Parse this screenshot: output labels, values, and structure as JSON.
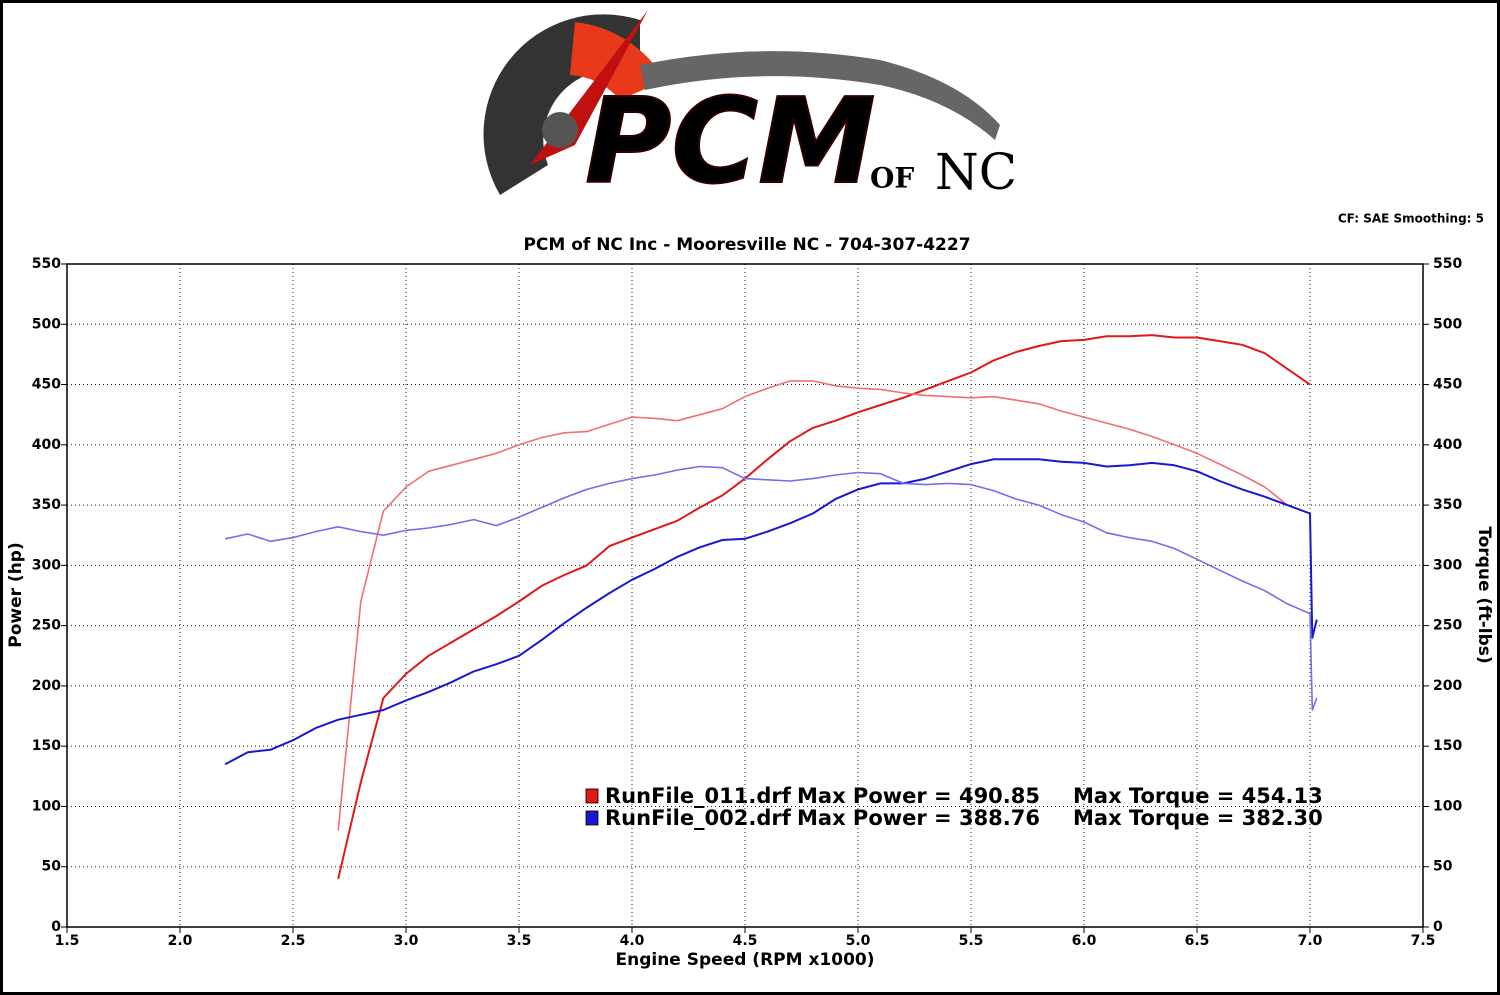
{
  "chart_data": {
    "type": "line",
    "logo": {
      "main": "PCM",
      "of": "OF",
      "nc": "NC"
    },
    "note": "CF: SAE  Smoothing: 5",
    "title": "PCM of NC Inc - Mooresville NC - 704-307-4227",
    "x_label": "Engine Speed (RPM x1000)",
    "y_label": "Power (hp)",
    "y2_label": "Torque (ft-lbs)",
    "xlim": [
      1.5,
      7.5
    ],
    "xticks": [
      1.5,
      {
        "value": 2,
        "label": "2.0"
      },
      2.5,
      {
        "value": 3,
        "label": "3.0"
      },
      3.5,
      {
        "value": 4,
        "label": "4.0"
      },
      4.5,
      {
        "value": 5,
        "label": "5.0"
      },
      5.5,
      {
        "value": 6,
        "label": "6.0"
      },
      6.5,
      {
        "value": 7,
        "label": "7.0"
      },
      7.5
    ],
    "ylim": [
      0,
      550
    ],
    "yticks": [
      0,
      50,
      100,
      150,
      200,
      250,
      300,
      350,
      400,
      450,
      500,
      550
    ],
    "y2lim": [
      0,
      550
    ],
    "y2ticks": [
      0,
      50,
      100,
      150,
      200,
      250,
      300,
      350,
      400,
      450,
      500,
      550
    ],
    "grid": true,
    "x": [
      2.2,
      2.3,
      2.4,
      2.5,
      2.6,
      2.7,
      2.8,
      2.9,
      3.0,
      3.1,
      3.2,
      3.3,
      3.4,
      3.5,
      3.6,
      3.7,
      3.8,
      3.9,
      4.0,
      4.1,
      4.2,
      4.3,
      4.4,
      4.5,
      4.6,
      4.7,
      4.8,
      4.9,
      5.0,
      5.1,
      5.2,
      5.3,
      5.4,
      5.5,
      5.6,
      5.7,
      5.8,
      5.9,
      6.0,
      6.1,
      6.2,
      6.3,
      6.4,
      6.5,
      6.6,
      6.7,
      6.8,
      6.9,
      7.0,
      7.01,
      7.03
    ],
    "series": [
      {
        "name": "RunFile_011.drf",
        "color": "#e01818",
        "width": 2,
        "values": [
          null,
          null,
          null,
          null,
          null,
          40,
          120,
          190,
          210,
          225,
          236,
          247,
          258,
          270,
          283,
          292,
          300,
          316,
          323,
          330,
          337,
          348,
          358,
          372,
          388,
          403,
          414,
          420,
          427,
          433,
          439,
          446,
          453,
          460,
          470,
          477,
          482,
          486,
          487,
          490,
          490,
          491,
          489,
          489,
          486,
          483,
          476,
          463,
          450,
          null,
          null
        ]
      },
      {
        "name": "RunFile_011.drf",
        "color": "#f07070",
        "width": 1.6,
        "axis": "y2",
        "values": [
          null,
          null,
          null,
          null,
          null,
          80,
          270,
          345,
          365,
          378,
          383,
          388,
          393,
          400,
          406,
          410,
          411,
          417,
          423,
          422,
          420,
          425,
          430,
          440,
          447,
          453,
          453,
          449,
          447,
          446,
          443,
          441,
          440,
          439,
          440,
          437,
          434,
          428,
          423,
          418,
          413,
          407,
          400,
          393,
          384,
          375,
          365,
          350,
          343,
          null,
          null
        ]
      },
      {
        "name": "RunFile_002.drf",
        "color": "#1818d0",
        "width": 2,
        "values": [
          135,
          145,
          147,
          155,
          165,
          172,
          176,
          180,
          188,
          195,
          203,
          212,
          218,
          225,
          238,
          252,
          265,
          277,
          288,
          297,
          307,
          315,
          321,
          322,
          328,
          335,
          343,
          355,
          363,
          368,
          368,
          372,
          378,
          384,
          388,
          388,
          388,
          386,
          385,
          382,
          383,
          385,
          383,
          378,
          370,
          363,
          357,
          350,
          343,
          240,
          255
        ]
      },
      {
        "name": "RunFile_002.drf",
        "color": "#7070e8",
        "width": 1.6,
        "axis": "y2",
        "values": [
          322,
          326,
          320,
          323,
          328,
          332,
          328,
          325,
          329,
          331,
          334,
          338,
          333,
          340,
          348,
          356,
          363,
          368,
          372,
          375,
          379,
          382,
          381,
          372,
          371,
          370,
          372,
          375,
          377,
          376,
          368,
          367,
          368,
          367,
          362,
          355,
          350,
          342,
          336,
          327,
          323,
          320,
          314,
          305,
          296,
          287,
          279,
          268,
          260,
          180,
          190
        ]
      }
    ],
    "legend": [
      {
        "series": 0,
        "power": "Max Power = 490.85",
        "torque": "Max Torque = 454.13"
      },
      {
        "series": 2,
        "power": "Max Power = 388.76",
        "torque": "Max Torque = 382.30"
      }
    ]
  }
}
